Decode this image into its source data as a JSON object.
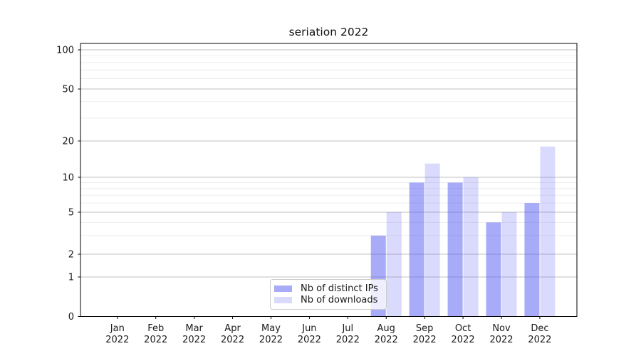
{
  "title": "seriation 2022",
  "chart_data": {
    "type": "bar",
    "title": "seriation 2022",
    "categories": [
      "Jan",
      "Feb",
      "Mar",
      "Apr",
      "May",
      "Jun",
      "Jul",
      "Aug",
      "Sep",
      "Oct",
      "Nov",
      "Dec"
    ],
    "year_label": "2022",
    "series": [
      {
        "name": "Nb of distinct IPs",
        "color": "rgba(85,90,240,0.51)",
        "values": [
          0,
          0,
          0,
          0,
          0,
          0,
          0,
          3,
          9,
          9,
          4,
          6
        ]
      },
      {
        "name": "Nb of downloads",
        "color": "rgba(85,90,240,0.22)",
        "values": [
          0,
          0,
          0,
          0,
          0,
          0,
          0,
          5,
          13,
          10,
          5,
          18
        ]
      }
    ],
    "y_axis": {
      "scale": "symlog",
      "ticks": [
        0,
        1,
        2,
        5,
        10,
        20,
        50,
        100
      ],
      "minor_ticks": [
        3,
        4,
        6,
        7,
        8,
        9,
        30,
        40,
        60,
        70,
        80,
        90
      ],
      "ylim": [
        0,
        110
      ]
    },
    "x_axis": {
      "tick_label_format": "month-over-year"
    },
    "grid": true,
    "legend_position": "lower-center",
    "colors": {
      "bar_base": "#555af0",
      "major_grid": "#c2c2c2",
      "minor_grid": "#ededed",
      "frame": "#000000",
      "text": "#1a1a1a"
    }
  }
}
